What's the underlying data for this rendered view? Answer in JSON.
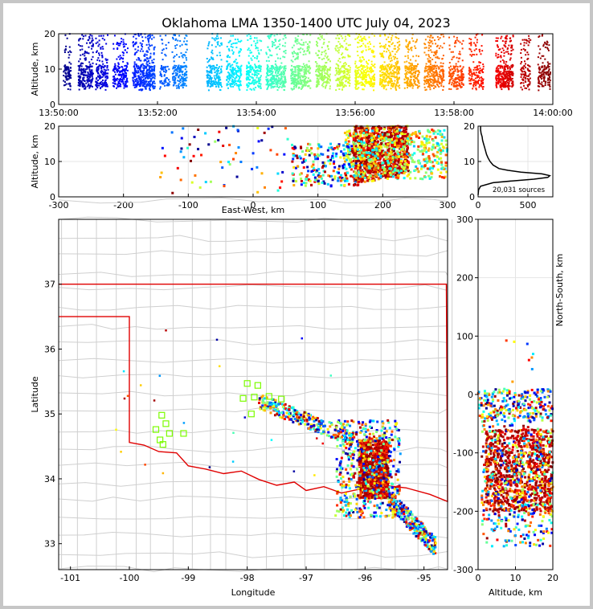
{
  "title": "Oklahoma LMA 1350-1400 UTC July 04, 2023",
  "chart_data": [
    {
      "id": "time-height",
      "type": "scatter",
      "xlabel": "",
      "ylabel": "Altitude, km",
      "xticks": [
        "13:50:00",
        "13:52:00",
        "13:54:00",
        "13:56:00",
        "13:58:00",
        "14:00:00"
      ],
      "xlim_minutes": [
        0,
        10
      ],
      "ylim": [
        0,
        20
      ],
      "yticks": [
        0,
        10,
        20
      ],
      "color_by": "time",
      "source_bands": [
        {
          "t_min": 0.1,
          "t_max": 0.25,
          "alt_min": 4,
          "alt_max": 20,
          "weight": 1.0
        },
        {
          "t_min": 0.4,
          "t_max": 0.7,
          "alt_min": 4,
          "alt_max": 20,
          "weight": 1.2
        },
        {
          "t_min": 0.75,
          "t_max": 1.0,
          "alt_min": 4,
          "alt_max": 20,
          "weight": 1.0
        },
        {
          "t_min": 1.1,
          "t_max": 1.4,
          "alt_min": 4,
          "alt_max": 20,
          "weight": 1.0
        },
        {
          "t_min": 1.5,
          "t_max": 1.95,
          "alt_min": 4,
          "alt_max": 20,
          "weight": 1.4
        },
        {
          "t_min": 2.05,
          "t_max": 2.25,
          "alt_min": 4,
          "alt_max": 20,
          "weight": 0.6
        },
        {
          "t_min": 2.3,
          "t_max": 2.6,
          "alt_min": 4,
          "alt_max": 20,
          "weight": 0.9
        },
        {
          "t_min": 3.0,
          "t_max": 3.3,
          "alt_min": 4,
          "alt_max": 20,
          "weight": 1.0
        },
        {
          "t_min": 3.4,
          "t_max": 3.7,
          "alt_min": 4,
          "alt_max": 20,
          "weight": 1.0
        },
        {
          "t_min": 3.8,
          "t_max": 4.1,
          "alt_min": 4,
          "alt_max": 20,
          "weight": 1.0
        },
        {
          "t_min": 4.2,
          "t_max": 4.6,
          "alt_min": 4,
          "alt_max": 20,
          "weight": 1.1
        },
        {
          "t_min": 4.7,
          "t_max": 5.1,
          "alt_min": 4,
          "alt_max": 20,
          "weight": 1.1
        },
        {
          "t_min": 5.2,
          "t_max": 5.5,
          "alt_min": 4,
          "alt_max": 20,
          "weight": 1.0
        },
        {
          "t_min": 5.6,
          "t_max": 5.9,
          "alt_min": 4,
          "alt_max": 20,
          "weight": 1.0
        },
        {
          "t_min": 6.0,
          "t_max": 6.4,
          "alt_min": 4,
          "alt_max": 20,
          "weight": 1.0
        },
        {
          "t_min": 6.5,
          "t_max": 6.9,
          "alt_min": 4,
          "alt_max": 20,
          "weight": 1.2
        },
        {
          "t_min": 7.0,
          "t_max": 7.3,
          "alt_min": 4,
          "alt_max": 20,
          "weight": 1.0
        },
        {
          "t_min": 7.4,
          "t_max": 7.8,
          "alt_min": 4,
          "alt_max": 20,
          "weight": 1.1
        },
        {
          "t_min": 7.9,
          "t_max": 8.2,
          "alt_min": 4,
          "alt_max": 20,
          "weight": 0.9
        },
        {
          "t_min": 8.3,
          "t_max": 8.6,
          "alt_min": 4,
          "alt_max": 20,
          "weight": 0.8
        },
        {
          "t_min": 8.85,
          "t_max": 9.2,
          "alt_min": 4,
          "alt_max": 20,
          "weight": 1.4
        },
        {
          "t_min": 9.35,
          "t_max": 9.55,
          "alt_min": 4,
          "alt_max": 20,
          "weight": 0.8
        },
        {
          "t_min": 9.7,
          "t_max": 9.95,
          "alt_min": 4,
          "alt_max": 20,
          "weight": 0.9
        }
      ]
    },
    {
      "id": "ew-altitude",
      "type": "scatter",
      "xlabel": "East-West, km",
      "ylabel": "Altitude, km",
      "xlim": [
        -300,
        300
      ],
      "xticks": [
        -300,
        -200,
        -100,
        0,
        100,
        200,
        300
      ],
      "ylim": [
        0,
        20
      ],
      "yticks": [
        0,
        10,
        20
      ],
      "clusters": [
        {
          "x": [
            155,
            240
          ],
          "alt": [
            3,
            20
          ],
          "n": 900,
          "color": "late"
        },
        {
          "x": [
            140,
            300
          ],
          "alt": [
            5,
            19
          ],
          "n": 500,
          "color": "mid"
        },
        {
          "x": [
            60,
            160
          ],
          "alt": [
            3,
            15
          ],
          "n": 220,
          "color": "mixed"
        },
        {
          "x": [
            -150,
            60
          ],
          "alt": [
            1,
            20
          ],
          "n": 70,
          "color": "mixed"
        }
      ]
    },
    {
      "id": "altitude-histogram",
      "type": "line",
      "xlim": [
        0,
        750
      ],
      "xticks": [
        0,
        500
      ],
      "ylim": [
        0,
        20
      ],
      "yticks": [
        0,
        10,
        20
      ],
      "annotation": "20,031 sources",
      "profile": [
        {
          "alt": 0.5,
          "count": 0
        },
        {
          "alt": 2,
          "count": 5
        },
        {
          "alt": 3,
          "count": 25
        },
        {
          "alt": 4,
          "count": 150
        },
        {
          "alt": 4.5,
          "count": 340
        },
        {
          "alt": 5,
          "count": 560
        },
        {
          "alt": 5.5,
          "count": 700
        },
        {
          "alt": 6,
          "count": 720
        },
        {
          "alt": 6.5,
          "count": 640
        },
        {
          "alt": 7,
          "count": 430
        },
        {
          "alt": 7.5,
          "count": 300
        },
        {
          "alt": 8,
          "count": 210
        },
        {
          "alt": 9,
          "count": 150
        },
        {
          "alt": 10,
          "count": 120
        },
        {
          "alt": 11,
          "count": 100
        },
        {
          "alt": 12,
          "count": 85
        },
        {
          "alt": 13,
          "count": 75
        },
        {
          "alt": 14,
          "count": 65
        },
        {
          "alt": 15,
          "count": 55
        },
        {
          "alt": 16,
          "count": 45
        },
        {
          "alt": 17,
          "count": 40
        },
        {
          "alt": 18,
          "count": 30
        },
        {
          "alt": 19,
          "count": 25
        },
        {
          "alt": 20,
          "count": 25
        }
      ]
    },
    {
      "id": "plan-view",
      "type": "scatter",
      "xlabel": "Longitude",
      "ylabel": "Latitude",
      "xlim": [
        -101.2,
        -94.6
      ],
      "xticks": [
        -101,
        -100,
        -99,
        -98,
        -97,
        -96,
        -95
      ],
      "ylim": [
        32.6,
        38
      ],
      "yticks": [
        33,
        34,
        35,
        36,
        37
      ],
      "stations": [
        {
          "lon": -99.45,
          "lat": 34.98
        },
        {
          "lon": -99.38,
          "lat": 34.85
        },
        {
          "lon": -99.55,
          "lat": 34.76
        },
        {
          "lon": -99.32,
          "lat": 34.7
        },
        {
          "lon": -99.08,
          "lat": 34.7
        },
        {
          "lon": -99.48,
          "lat": 34.6
        },
        {
          "lon": -99.43,
          "lat": 34.53
        },
        {
          "lon": -98.0,
          "lat": 35.47
        },
        {
          "lon": -97.82,
          "lat": 35.44
        },
        {
          "lon": -98.07,
          "lat": 35.24
        },
        {
          "lon": -97.88,
          "lat": 35.26
        },
        {
          "lon": -97.63,
          "lat": 35.27
        },
        {
          "lon": -97.42,
          "lat": 35.23
        },
        {
          "lon": -97.93,
          "lat": 35.0
        }
      ],
      "clusters": [
        {
          "lon": [
            -96.1,
            -95.6
          ],
          "lat": [
            33.7,
            34.6
          ],
          "n": 900,
          "color": "late"
        },
        {
          "lon": [
            -96.5,
            -95.4
          ],
          "lat": [
            33.4,
            34.9
          ],
          "n": 500,
          "color": "mixed"
        },
        {
          "lon": [
            -97.8,
            -96.2
          ],
          "lat": [
            34.55,
            35.3
          ],
          "n": 280,
          "color": "mixed"
        },
        {
          "lon": [
            -95.6,
            -94.8
          ],
          "lat": [
            32.9,
            33.7
          ],
          "n": 260,
          "color": "mixed"
        }
      ]
    },
    {
      "id": "altitude-ns",
      "type": "scatter",
      "xlabel": "Altitude, km",
      "ylabel": "North-South, km",
      "xlim": [
        0,
        20
      ],
      "xticks": [
        0,
        10,
        20
      ],
      "ylim": [
        -300,
        300
      ],
      "yticks": [
        -300,
        -200,
        -100,
        0,
        100,
        200,
        300
      ],
      "clusters": [
        {
          "alt": [
            2,
            20
          ],
          "ns": [
            -200,
            -60
          ],
          "n": 900,
          "color": "late"
        },
        {
          "alt": [
            1,
            20
          ],
          "ns": [
            -260,
            -20
          ],
          "n": 450,
          "color": "mixed"
        },
        {
          "alt": [
            0,
            20
          ],
          "ns": [
            -40,
            10
          ],
          "n": 200,
          "color": "mixed"
        }
      ]
    }
  ]
}
